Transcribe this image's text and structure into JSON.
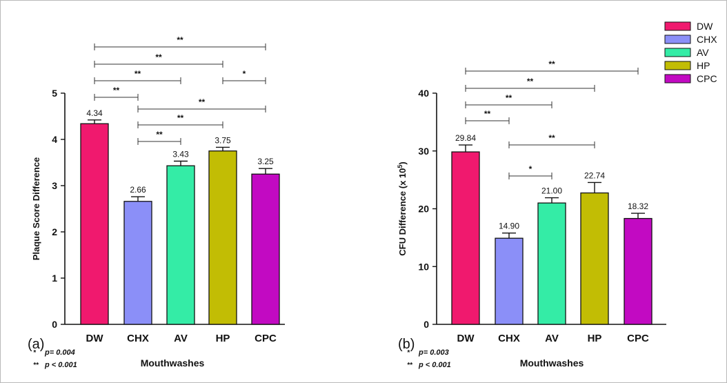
{
  "legend": {
    "items": [
      {
        "label": "DW",
        "color": "#f0196e"
      },
      {
        "label": "CHX",
        "color": "#8b8ff8"
      },
      {
        "label": "AV",
        "color": "#34eca6"
      },
      {
        "label": "HP",
        "color": "#c2bd04"
      },
      {
        "label": "CPC",
        "color": "#c20ac2"
      }
    ]
  },
  "chart_data": [
    {
      "type": "bar",
      "panel_label": "(a)",
      "categories": [
        "DW",
        "CHX",
        "AV",
        "HP",
        "CPC"
      ],
      "values": [
        4.34,
        2.66,
        3.43,
        3.75,
        3.25
      ],
      "errors": [
        0.08,
        0.1,
        0.1,
        0.08,
        0.12
      ],
      "value_labels": [
        "4.34",
        "2.66",
        "3.43",
        "3.75",
        "3.25"
      ],
      "colors": [
        "#f0196e",
        "#8b8ff8",
        "#34eca6",
        "#c2bd04",
        "#c20ac2"
      ],
      "xlabel": "Mouthwashes",
      "ylabel": "Plaque Score Difference",
      "ylim": [
        0,
        5
      ],
      "yticks": [
        0,
        1,
        2,
        3,
        4,
        5
      ],
      "significance": [
        {
          "from": "DW",
          "to": "CPC",
          "label": "**"
        },
        {
          "from": "DW",
          "to": "HP",
          "label": "**"
        },
        {
          "from": "DW",
          "to": "AV",
          "label": "**"
        },
        {
          "from": "HP",
          "to": "CPC",
          "label": "*"
        },
        {
          "from": "DW",
          "to": "CHX",
          "label": "**"
        },
        {
          "from": "CHX",
          "to": "CPC",
          "label": "**"
        },
        {
          "from": "CHX",
          "to": "HP",
          "label": "**"
        },
        {
          "from": "CHX",
          "to": "AV",
          "label": "**"
        }
      ],
      "notes": [
        {
          "stars": "*",
          "text": "p= 0.004"
        },
        {
          "stars": "**",
          "text": "p < 0.001"
        }
      ]
    },
    {
      "type": "bar",
      "panel_label": "(b)",
      "categories": [
        "DW",
        "CHX",
        "AV",
        "HP",
        "CPC"
      ],
      "values": [
        29.84,
        14.9,
        21.0,
        22.74,
        18.32
      ],
      "errors": [
        1.2,
        0.9,
        0.9,
        1.8,
        0.9
      ],
      "value_labels": [
        "29.84",
        "14.90",
        "21.00",
        "22.74",
        "18.32"
      ],
      "colors": [
        "#f0196e",
        "#8b8ff8",
        "#34eca6",
        "#c2bd04",
        "#c20ac2"
      ],
      "xlabel": "Mouthwashes",
      "ylabel": "CFU Difference (x 10",
      "ylabel_sup": "5",
      "ylabel_end": ")",
      "ylim": [
        0,
        40
      ],
      "yticks": [
        0,
        10,
        20,
        30,
        40
      ],
      "significance": [
        {
          "from": "DW",
          "to": "CPC",
          "label": "**"
        },
        {
          "from": "DW",
          "to": "HP",
          "label": "**"
        },
        {
          "from": "DW",
          "to": "AV",
          "label": "**"
        },
        {
          "from": "DW",
          "to": "CHX",
          "label": "**"
        },
        {
          "from": "CHX",
          "to": "HP",
          "label": "**"
        },
        {
          "from": "CHX",
          "to": "AV",
          "label": "*"
        }
      ],
      "notes": [
        {
          "stars": "*",
          "text": "p= 0.003"
        },
        {
          "stars": "**",
          "text": "p < 0.001"
        }
      ]
    }
  ]
}
